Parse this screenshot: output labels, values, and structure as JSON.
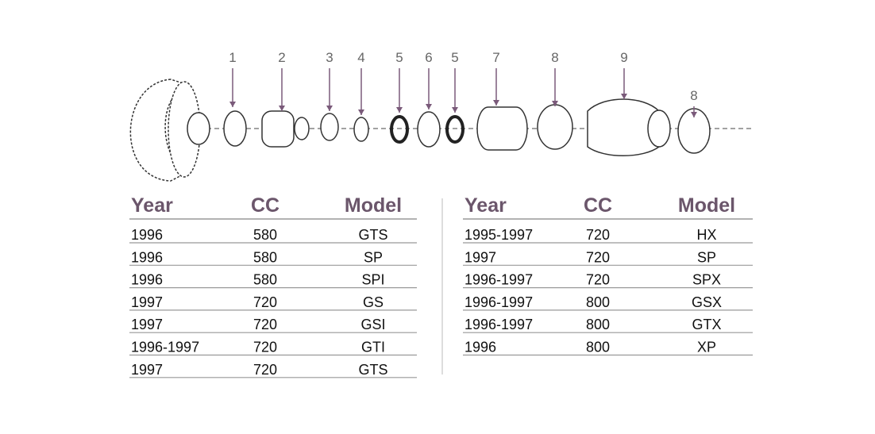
{
  "callouts": [
    "1",
    "2",
    "3",
    "4",
    "5",
    "6",
    "5",
    "7",
    "8",
    "9",
    "8"
  ],
  "tables": [
    {
      "headers": [
        "Year",
        "CC",
        "Model"
      ],
      "rows": [
        [
          "1996",
          "580",
          "GTS"
        ],
        [
          "1996",
          "580",
          "SP"
        ],
        [
          "1996",
          "580",
          "SPI"
        ],
        [
          "1997",
          "720",
          "GS"
        ],
        [
          "1997",
          "720",
          "GSI"
        ],
        [
          "1996-1997",
          "720",
          "GTI"
        ],
        [
          "1997",
          "720",
          "GTS"
        ]
      ]
    },
    {
      "headers": [
        "Year",
        "CC",
        "Model"
      ],
      "rows": [
        [
          "1995-1997",
          "720",
          "HX"
        ],
        [
          "1997",
          "720",
          "SP"
        ],
        [
          "1996-1997",
          "720",
          "SPX"
        ],
        [
          "1996-1997",
          "800",
          "GSX"
        ],
        [
          "1996-1997",
          "800",
          "GTX"
        ],
        [
          "1996",
          "800",
          "XP"
        ]
      ]
    }
  ]
}
